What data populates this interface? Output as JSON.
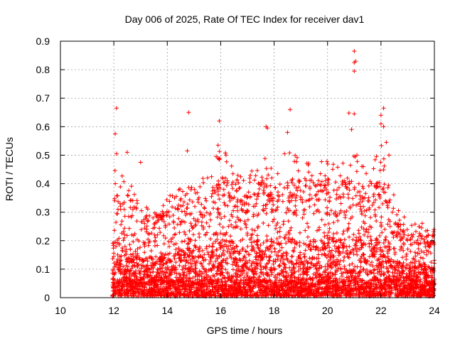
{
  "chart_data": {
    "type": "scatter",
    "title": "Day 006 of 2025, Rate Of TEC Index for receiver dav1",
    "xlabel": "GPS time / hours",
    "ylabel": "ROTI / TECUs",
    "xlim": [
      10,
      24
    ],
    "ylim": [
      0,
      0.9
    ],
    "x_ticks": [
      "10",
      "12",
      "14",
      "16",
      "18",
      "20",
      "22",
      "24"
    ],
    "y_ticks": [
      "0",
      "0.1",
      "0.2",
      "0.3",
      "0.4",
      "0.5",
      "0.6",
      "0.7",
      "0.8",
      "0.9"
    ],
    "grid": true,
    "marker": "plus",
    "color": "#ff0000",
    "density_profile": {
      "x_start": 11.95,
      "x_end": 24.0,
      "typical_upper_envelope": [
        {
          "x": 12.0,
          "y": 0.38
        },
        {
          "x": 12.5,
          "y": 0.36
        },
        {
          "x": 13.0,
          "y": 0.3
        },
        {
          "x": 13.5,
          "y": 0.28
        },
        {
          "x": 14.0,
          "y": 0.3
        },
        {
          "x": 14.5,
          "y": 0.33
        },
        {
          "x": 15.0,
          "y": 0.35
        },
        {
          "x": 15.5,
          "y": 0.35
        },
        {
          "x": 16.0,
          "y": 0.45
        },
        {
          "x": 16.5,
          "y": 0.38
        },
        {
          "x": 17.0,
          "y": 0.35
        },
        {
          "x": 17.5,
          "y": 0.42
        },
        {
          "x": 18.0,
          "y": 0.4
        },
        {
          "x": 18.5,
          "y": 0.45
        },
        {
          "x": 19.0,
          "y": 0.4
        },
        {
          "x": 19.5,
          "y": 0.42
        },
        {
          "x": 20.0,
          "y": 0.42
        },
        {
          "x": 20.5,
          "y": 0.4
        },
        {
          "x": 21.0,
          "y": 0.42
        },
        {
          "x": 21.5,
          "y": 0.38
        },
        {
          "x": 22.0,
          "y": 0.45
        },
        {
          "x": 22.5,
          "y": 0.3
        },
        {
          "x": 23.0,
          "y": 0.22
        },
        {
          "x": 23.5,
          "y": 0.22
        },
        {
          "x": 24.0,
          "y": 0.2
        }
      ]
    },
    "outliers": [
      {
        "x": 12.1,
        "y": 0.665
      },
      {
        "x": 12.05,
        "y": 0.575
      },
      {
        "x": 12.1,
        "y": 0.505
      },
      {
        "x": 12.5,
        "y": 0.51
      },
      {
        "x": 13.0,
        "y": 0.475
      },
      {
        "x": 14.8,
        "y": 0.65
      },
      {
        "x": 14.75,
        "y": 0.515
      },
      {
        "x": 15.95,
        "y": 0.62
      },
      {
        "x": 15.9,
        "y": 0.535
      },
      {
        "x": 16.2,
        "y": 0.5
      },
      {
        "x": 17.7,
        "y": 0.6
      },
      {
        "x": 17.75,
        "y": 0.595
      },
      {
        "x": 18.6,
        "y": 0.66
      },
      {
        "x": 18.5,
        "y": 0.58
      },
      {
        "x": 21.0,
        "y": 0.865
      },
      {
        "x": 21.05,
        "y": 0.83
      },
      {
        "x": 21.0,
        "y": 0.825
      },
      {
        "x": 21.0,
        "y": 0.795
      },
      {
        "x": 20.8,
        "y": 0.648
      },
      {
        "x": 21.0,
        "y": 0.645
      },
      {
        "x": 20.9,
        "y": 0.59
      },
      {
        "x": 21.1,
        "y": 0.5
      },
      {
        "x": 22.1,
        "y": 0.665
      },
      {
        "x": 22.0,
        "y": 0.64
      },
      {
        "x": 22.0,
        "y": 0.61
      },
      {
        "x": 22.1,
        "y": 0.6
      },
      {
        "x": 22.2,
        "y": 0.545
      },
      {
        "x": 22.3,
        "y": 0.5
      }
    ]
  }
}
